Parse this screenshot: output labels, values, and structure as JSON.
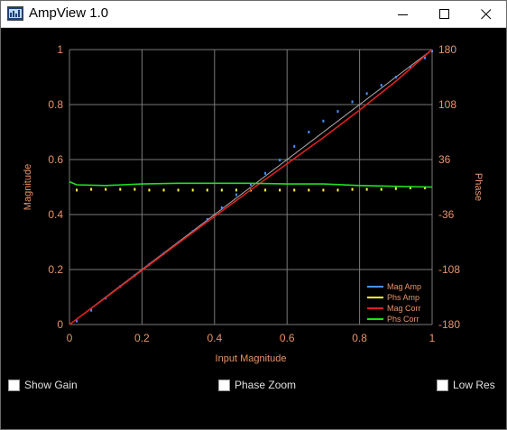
{
  "window": {
    "title": "AmpView 1.0"
  },
  "controls": {
    "show_gain": {
      "label": "Show Gain",
      "checked": false
    },
    "phase_zoom": {
      "label": "Phase Zoom",
      "checked": false
    },
    "low_res": {
      "label": "Low Res",
      "checked": false
    }
  },
  "colors": {
    "background": "#000000",
    "axis_text": "#e8946a",
    "grid": "#7a7a7a",
    "mag_amp": "#4a90ff",
    "phs_amp": "#ffff40",
    "mag_corr": "#e02020",
    "phs_corr": "#20e020"
  },
  "chart_data": {
    "type": "line",
    "xlabel": "Input Magnitude",
    "ylabel": "Magnitude",
    "y2label": "Phase",
    "xlim": [
      0,
      1
    ],
    "ylim": [
      0,
      1
    ],
    "y2lim": [
      -180,
      180
    ],
    "x_ticks": [
      "0",
      "0.2",
      "0.4",
      "0.6",
      "0.8",
      "1"
    ],
    "y_ticks": [
      "0",
      "0.2",
      "0.4",
      "0.6",
      "0.8",
      "1"
    ],
    "y2_ticks": [
      "-180",
      "-108",
      "-36",
      "36",
      "108",
      "180"
    ],
    "grid": true,
    "legend_position": "bottom-right",
    "series": [
      {
        "name": "Mag Amp",
        "axis": "left",
        "style": "points",
        "x": [
          0.02,
          0.06,
          0.1,
          0.14,
          0.18,
          0.22,
          0.26,
          0.3,
          0.34,
          0.38,
          0.42,
          0.46,
          0.5,
          0.54,
          0.58,
          0.62,
          0.66,
          0.7,
          0.74,
          0.78,
          0.82,
          0.86,
          0.9,
          0.94,
          0.98,
          1.0
        ],
        "values": [
          0.013,
          0.052,
          0.096,
          0.138,
          0.178,
          0.218,
          0.258,
          0.298,
          0.338,
          0.382,
          0.425,
          0.472,
          0.51,
          0.55,
          0.598,
          0.648,
          0.7,
          0.74,
          0.775,
          0.81,
          0.84,
          0.87,
          0.9,
          0.935,
          0.97,
          0.995
        ]
      },
      {
        "name": "Phs Amp",
        "axis": "right",
        "style": "points",
        "x": [
          0.02,
          0.06,
          0.1,
          0.14,
          0.18,
          0.22,
          0.26,
          0.3,
          0.34,
          0.38,
          0.42,
          0.46,
          0.5,
          0.54,
          0.58,
          0.62,
          0.66,
          0.7,
          0.74,
          0.78,
          0.82,
          0.86,
          0.9,
          0.94,
          0.98
        ],
        "values": [
          -4,
          -3,
          -3,
          -3,
          -3,
          -4,
          -4,
          -4,
          -4,
          -4,
          -4,
          -4,
          -4,
          -4,
          -4,
          -4,
          -4,
          -4,
          -4,
          -3,
          -3,
          -3,
          -2,
          -1,
          -1
        ]
      },
      {
        "name": "Mag Corr",
        "axis": "left",
        "style": "line",
        "x": [
          0,
          0.1,
          0.2,
          0.3,
          0.4,
          0.5,
          0.6,
          0.7,
          0.8,
          0.9,
          1.0
        ],
        "values": [
          0,
          0.098,
          0.197,
          0.296,
          0.393,
          0.49,
          0.585,
          0.68,
          0.78,
          0.885,
          1.0
        ]
      },
      {
        "name": "Phs Corr",
        "axis": "right",
        "style": "line",
        "x": [
          0,
          0.02,
          0.1,
          0.2,
          0.3,
          0.4,
          0.5,
          0.6,
          0.7,
          0.8,
          0.9,
          1.0
        ],
        "values": [
          7,
          3,
          2,
          4,
          5,
          5,
          5,
          4,
          4,
          2,
          1,
          0
        ]
      }
    ],
    "extra_lines": [
      {
        "name": "diagonal-reference",
        "x": [
          0,
          1
        ],
        "values": [
          0,
          1
        ],
        "color": "#b0b0b0"
      }
    ]
  }
}
